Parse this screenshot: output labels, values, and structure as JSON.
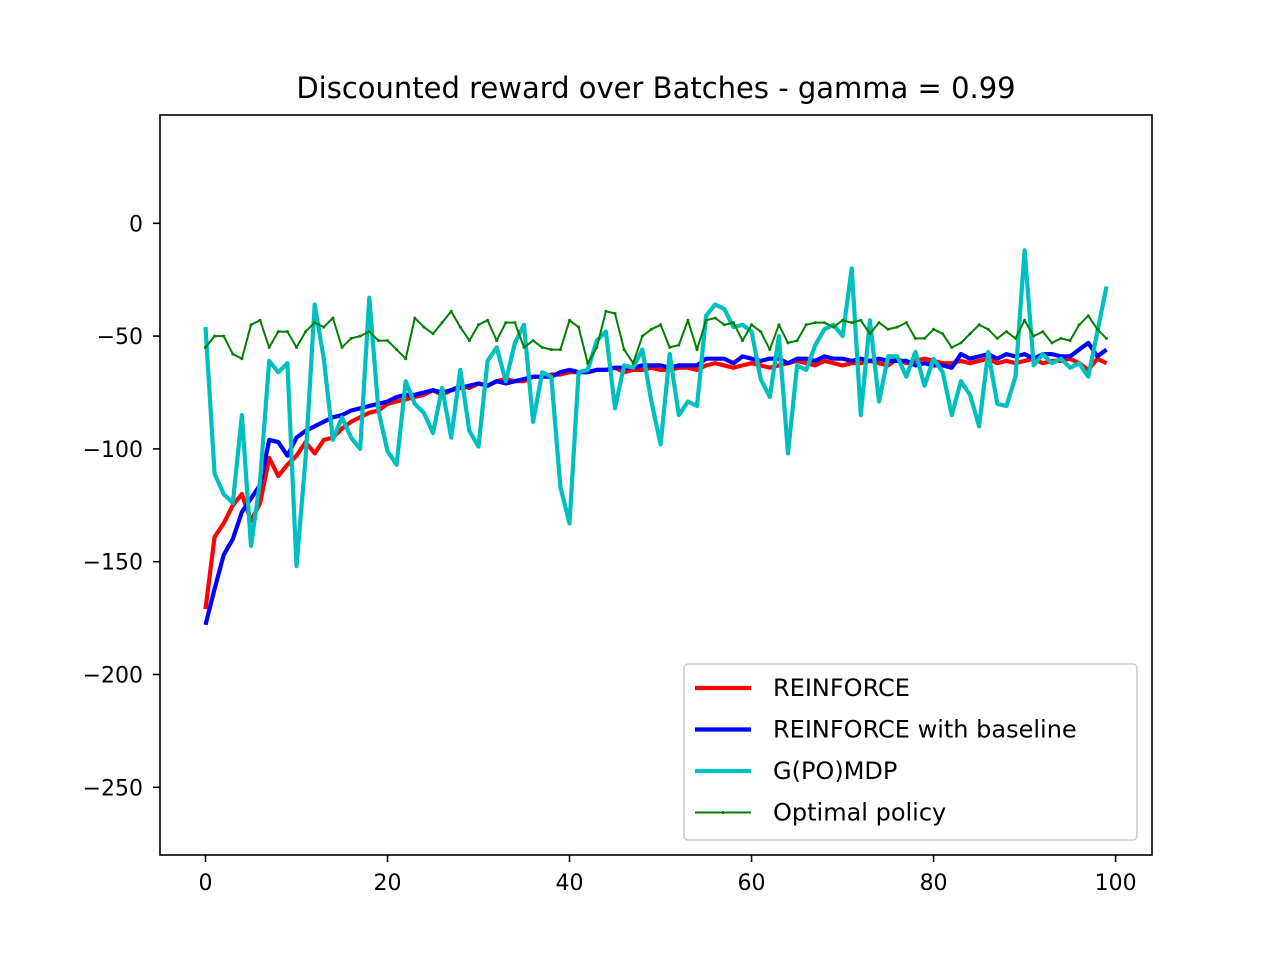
{
  "chart_data": {
    "type": "line",
    "title": "Discounted reward over Batches - gamma = 0.99",
    "xlabel": "",
    "ylabel": "",
    "xlim": [
      -5,
      104
    ],
    "ylim": [
      -280,
      48
    ],
    "x_ticks": [
      0,
      20,
      40,
      60,
      80,
      100
    ],
    "y_ticks": [
      0,
      -50,
      -100,
      -150,
      -200,
      -250
    ],
    "x_tick_labels": [
      "0",
      "20",
      "40",
      "60",
      "80",
      "100"
    ],
    "y_tick_labels": [
      "0",
      "−50",
      "−100",
      "−150",
      "−200",
      "−250"
    ],
    "legend_position": "lower-right",
    "grid": false,
    "series": [
      {
        "name": "REINFORCE",
        "color": "#ff0000",
        "role": "mean",
        "values": [
          -171,
          -139,
          -133,
          -125,
          -120,
          -132,
          -124,
          -104,
          -112,
          -107,
          -103,
          -97,
          -102,
          -96,
          -95,
          -91,
          -88,
          -86,
          -84,
          -83,
          -80,
          -79,
          -78,
          -77,
          -76,
          -74,
          -76,
          -74,
          -72,
          -73,
          -71,
          -72,
          -70,
          -69,
          -70,
          -70,
          -68,
          -68,
          -67,
          -67,
          -66,
          -66,
          -66,
          -65,
          -65,
          -64,
          -66,
          -65,
          -65,
          -64,
          -65,
          -65,
          -64,
          -64,
          -65,
          -63,
          -62,
          -63,
          -64,
          -63,
          -62,
          -63,
          -64,
          -63,
          -62,
          -61,
          -62,
          -63,
          -61,
          -62,
          -63,
          -62,
          -62,
          -61,
          -62,
          -63,
          -60,
          -62,
          -61,
          -60,
          -61,
          -62,
          -62,
          -61,
          -62,
          -61,
          -60,
          -62,
          -61,
          -62,
          -61,
          -60,
          -62,
          -61,
          -61,
          -60,
          -62,
          -65,
          -60,
          -62
        ]
      },
      {
        "name": "REINFORCE with baseline",
        "color": "#0000ff",
        "role": "mean",
        "values": [
          -178,
          -162,
          -147,
          -140,
          -128,
          -122,
          -116,
          -96,
          -97,
          -103,
          -95,
          -92,
          -90,
          -88,
          -86,
          -85,
          -83,
          -82,
          -81,
          -80,
          -79,
          -77,
          -76,
          -76,
          -75,
          -74,
          -75,
          -74,
          -73,
          -72,
          -71,
          -72,
          -70,
          -71,
          -70,
          -69,
          -68,
          -68,
          -68,
          -66,
          -65,
          -66,
          -66,
          -65,
          -65,
          -64,
          -64,
          -64,
          -63,
          -63,
          -63,
          -64,
          -63,
          -63,
          -63,
          -60,
          -60,
          -60,
          -62,
          -59,
          -60,
          -61,
          -60,
          -60,
          -62,
          -60,
          -60,
          -61,
          -59,
          -60,
          -60,
          -61,
          -60,
          -61,
          -60,
          -61,
          -61,
          -61,
          -63,
          -62,
          -63,
          -63,
          -64,
          -58,
          -60,
          -59,
          -58,
          -60,
          -58,
          -59,
          -58,
          -60,
          -58,
          -58,
          -59,
          -59,
          -56,
          -53,
          -59,
          -56
        ]
      },
      {
        "name": "G(PO)MDP",
        "color": "#00bfbf",
        "role": "mean",
        "values": [
          -46,
          -111,
          -120,
          -124,
          -85,
          -143,
          -114,
          -61,
          -66,
          -62,
          -152,
          -104,
          -36,
          -60,
          -96,
          -86,
          -95,
          -100,
          -33,
          -83,
          -101,
          -107,
          -70,
          -80,
          -84,
          -93,
          -73,
          -95,
          -65,
          -92,
          -99,
          -61,
          -55,
          -70,
          -53,
          -45,
          -88,
          -66,
          -68,
          -117,
          -133,
          -66,
          -65,
          -52,
          -48,
          -82,
          -63,
          -64,
          -56,
          -79,
          -98,
          -58,
          -85,
          -79,
          -81,
          -41,
          -36,
          -38,
          -46,
          -45,
          -48,
          -69,
          -77,
          -50,
          -102,
          -63,
          -65,
          -54,
          -47,
          -45,
          -50,
          -20,
          -85,
          -43,
          -79,
          -59,
          -59,
          -68,
          -57,
          -72,
          -60,
          -66,
          -85,
          -70,
          -76,
          -90,
          -57,
          -80,
          -81,
          -68,
          -12,
          -63,
          -58,
          -62,
          -60,
          -64,
          -62,
          -68,
          -48,
          -28
        ]
      },
      {
        "name": "Optimal policy",
        "color": "#008000",
        "role": "reference",
        "values": [
          -55,
          -50,
          -50,
          -58,
          -60,
          -45,
          -43,
          -55,
          -48,
          -48,
          -55,
          -48,
          -44,
          -46,
          -42,
          -55,
          -51,
          -50,
          -48,
          -52,
          -52,
          -56,
          -60,
          -42,
          -46,
          -49,
          -44,
          -39,
          -46,
          -52,
          -45,
          -43,
          -52,
          -44,
          -44,
          -55,
          -52,
          -55,
          -56,
          -56,
          -43,
          -46,
          -62,
          -55,
          -39,
          -40,
          -56,
          -62,
          -50,
          -47,
          -45,
          -55,
          -54,
          -43,
          -56,
          -43,
          -42,
          -45,
          -44,
          -52,
          -45,
          -48,
          -56,
          -45,
          -53,
          -52,
          -45,
          -44,
          -44,
          -46,
          -43,
          -44,
          -43,
          -49,
          -44,
          -47,
          -46,
          -44,
          -51,
          -51,
          -47,
          -49,
          -55,
          -53,
          -49,
          -45,
          -47,
          -51,
          -48,
          -51,
          -43,
          -50,
          -48,
          -53,
          -51,
          -52,
          -45,
          -41,
          -47,
          -51
        ]
      }
    ]
  }
}
